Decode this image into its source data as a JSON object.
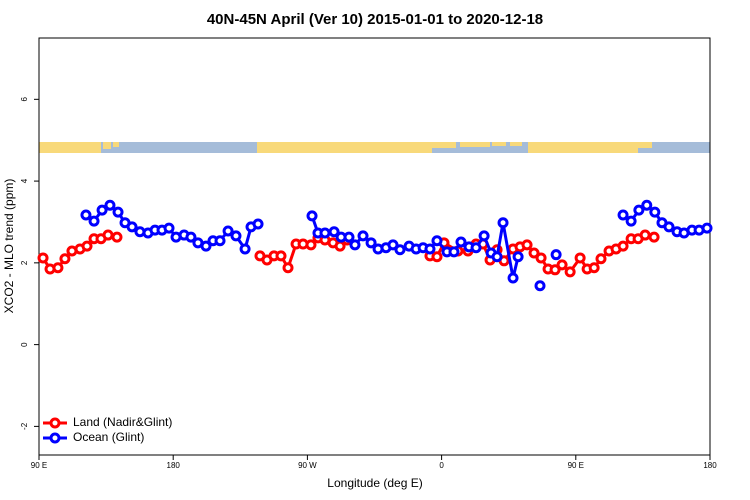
{
  "chart_data": {
    "type": "line",
    "title": "40N-45N April (Ver 10)   2015-01-01 to 2020-12-18",
    "x_label": "Longitude (deg E)",
    "y_label": "XCO2 - MLO trend (ppm)",
    "xlim": [
      90,
      540
    ],
    "xticks": [
      {
        "value": 90,
        "label": "90 E"
      },
      180,
      {
        "value": 270,
        "label": "90 W"
      },
      {
        "value": 360,
        "label": "0"
      },
      {
        "value": 450,
        "label": "90 E"
      },
      {
        "value": 540,
        "label": "180"
      }
    ],
    "ylim": [
      -2.7,
      7.5
    ],
    "yticks": [
      -2,
      0,
      2,
      4,
      6
    ],
    "legend": "bottom-left",
    "series": [
      {
        "name": "Land (Nadir&Glint)",
        "color": "#ff0000",
        "x": [
          92.7,
          97.4,
          102.7,
          107.4,
          112.1,
          117.5,
          122.2,
          126.9,
          131.6,
          136.3,
          142.3,
          null,
          238.2,
          242.9,
          247.6,
          252.3,
          257.0,
          262.4,
          267.1,
          272.4,
          277.1,
          281.8,
          287.2,
          291.9,
          296.6,
          null,
          352.2,
          356.9,
          361.6,
          371.0,
          377.7,
          383.1,
          387.8,
          392.5,
          397.2,
          401.9,
          407.9,
          412.6,
          417.3,
          422.0,
          426.7,
          431.4,
          436.1,
          440.8,
          446.2,
          452.9,
          457.6,
          462.3,
          466.9,
          472.3,
          477.0,
          481.7,
          487.1,
          491.8,
          496.5,
          502.5
        ],
        "values": [
          2.12,
          1.85,
          1.88,
          2.1,
          2.29,
          2.34,
          2.41,
          2.59,
          2.59,
          2.68,
          2.63,
          null,
          2.17,
          2.07,
          2.17,
          2.17,
          1.88,
          2.46,
          2.46,
          2.44,
          2.61,
          2.56,
          2.49,
          2.41,
          2.56,
          null,
          2.17,
          2.15,
          2.49,
          2.29,
          2.29,
          2.46,
          2.46,
          2.07,
          2.32,
          2.05,
          2.34,
          2.39,
          2.44,
          2.24,
          2.12,
          1.85,
          1.83,
          1.95,
          1.78,
          2.12,
          1.85,
          1.88,
          2.1,
          2.29,
          2.34,
          2.41,
          2.59,
          2.59,
          2.68,
          2.63
        ]
      },
      {
        "name": "Ocean (Glint)",
        "color": "#0000ff",
        "x": [
          121.5,
          126.9,
          132.3,
          137.6,
          143.0,
          147.7,
          152.4,
          157.7,
          163.1,
          167.8,
          172.5,
          177.2,
          181.9,
          187.3,
          191.9,
          196.6,
          202.0,
          206.7,
          211.4,
          216.8,
          222.1,
          228.2,
          232.2,
          236.9,
          null,
          273.1,
          277.1,
          281.8,
          287.9,
          292.6,
          297.9,
          301.9,
          307.3,
          312.7,
          317.4,
          322.7,
          327.4,
          332.1,
          338.2,
          342.9,
          347.6,
          352.2,
          356.9,
          363.6,
          368.3,
          373.0,
          378.4,
          383.1,
          388.5,
          393.2,
          397.2,
          401.2,
          407.9,
          411.3,
          null,
          426.0,
          null,
          436.8,
          null,
          481.7,
          487.1,
          492.3,
          497.6,
          503.0,
          507.8,
          512.5,
          517.9,
          522.6,
          527.9,
          532.7,
          538.0
        ],
        "values": [
          3.17,
          3.02,
          3.29,
          3.41,
          3.24,
          2.98,
          2.88,
          2.76,
          2.73,
          2.8,
          2.8,
          2.85,
          2.63,
          2.68,
          2.63,
          2.49,
          2.41,
          2.54,
          2.54,
          2.78,
          2.66,
          2.34,
          2.88,
          2.95,
          null,
          3.15,
          2.73,
          2.73,
          2.76,
          2.63,
          2.63,
          2.44,
          2.66,
          2.49,
          2.34,
          2.37,
          2.44,
          2.32,
          2.41,
          2.34,
          2.37,
          2.34,
          2.54,
          2.27,
          2.27,
          2.51,
          2.39,
          2.37,
          2.66,
          2.24,
          2.15,
          2.98,
          1.63,
          2.15,
          null,
          1.44,
          null,
          2.2,
          null,
          3.17,
          3.02,
          3.29,
          3.41,
          3.24,
          2.98,
          2.88,
          2.76,
          2.73,
          2.8,
          2.8,
          2.85
        ]
      }
    ]
  }
}
